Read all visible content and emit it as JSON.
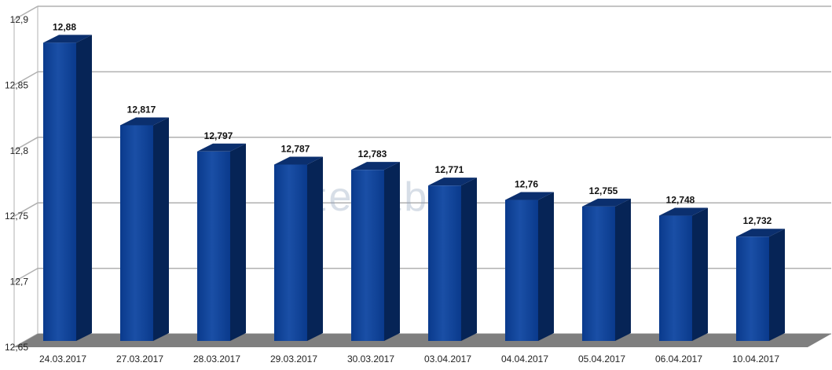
{
  "chart_data": {
    "type": "bar",
    "categories": [
      "24.03.2017",
      "27.03.2017",
      "28.03.2017",
      "29.03.2017",
      "30.03.2017",
      "03.04.2017",
      "04.04.2017",
      "05.04.2017",
      "06.04.2017",
      "10.04.2017"
    ],
    "values": [
      12.88,
      12.817,
      12.797,
      12.787,
      12.783,
      12.771,
      12.76,
      12.755,
      12.748,
      12.732
    ],
    "data_labels": [
      "12,88",
      "12,817",
      "12,797",
      "12,787",
      "12,783",
      "12,771",
      "12,76",
      "12,755",
      "12,748",
      "12,732"
    ],
    "ylim": [
      12.65,
      12.9
    ],
    "yticks": [
      12.65,
      12.7,
      12.75,
      12.8,
      12.85,
      12.9
    ],
    "ytick_labels": [
      "12,65",
      "12,7",
      "12,75",
      "12,8",
      "12,85",
      "12,9"
    ],
    "grid": true,
    "style": "3d-bar",
    "watermark": "tezabek",
    "colors": {
      "bar_front": "#0a3a8c",
      "bar_side": "#062456",
      "bar_top": "#0b2f6e",
      "floor": "#7f7f7f",
      "grid": "#b0b0b0"
    }
  }
}
